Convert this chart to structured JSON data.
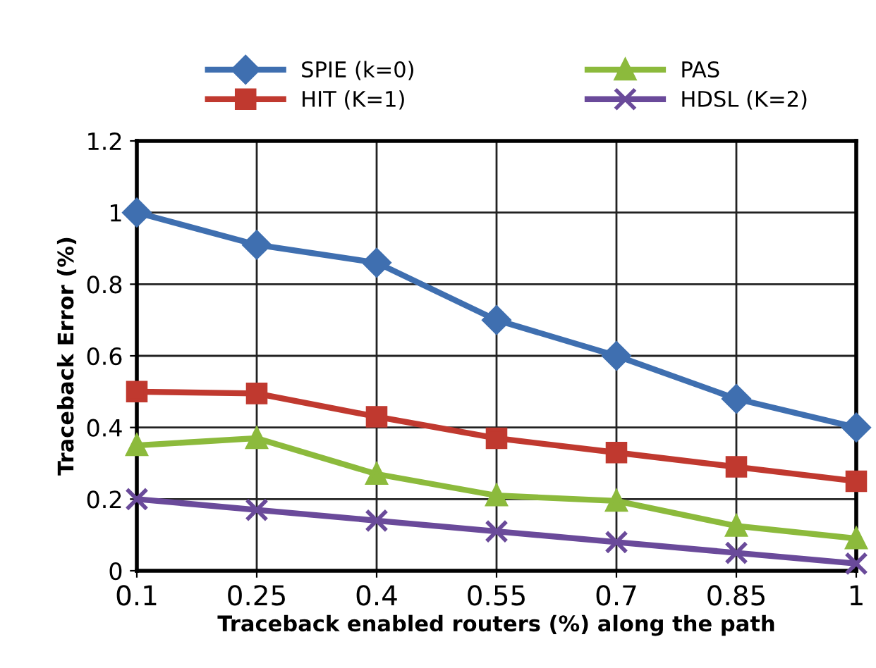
{
  "chart_data": {
    "type": "line",
    "xlabel": "Traceback enabled routers (%) along the path",
    "ylabel": "Traceback Error (%)",
    "categories": [
      "0.1",
      "0.25",
      "0.4",
      "0.55",
      "0.7",
      "0.85",
      "1"
    ],
    "series": [
      {
        "name": "SPIE (k=0)",
        "color": "#3f6fb0",
        "marker": "diamond",
        "values": [
          1.0,
          0.91,
          0.86,
          0.7,
          0.6,
          0.48,
          0.4
        ]
      },
      {
        "name": "HIT (K=1)",
        "color": "#c0392f",
        "marker": "square",
        "values": [
          0.5,
          0.495,
          0.43,
          0.37,
          0.33,
          0.29,
          0.25
        ]
      },
      {
        "name": "PAS",
        "color": "#8cba3c",
        "marker": "triangle",
        "values": [
          0.35,
          0.37,
          0.27,
          0.21,
          0.195,
          0.125,
          0.09
        ]
      },
      {
        "name": "HDSL (K=2)",
        "color": "#6a4a9a",
        "marker": "cross",
        "values": [
          0.2,
          0.17,
          0.14,
          0.11,
          0.08,
          0.05,
          0.02
        ]
      }
    ],
    "ylim": [
      0,
      1.2
    ],
    "yticks": [
      0,
      0.2,
      0.4,
      0.6,
      0.8,
      1,
      1.2
    ],
    "grid": true,
    "legend": "top",
    "line_style": "solid"
  }
}
